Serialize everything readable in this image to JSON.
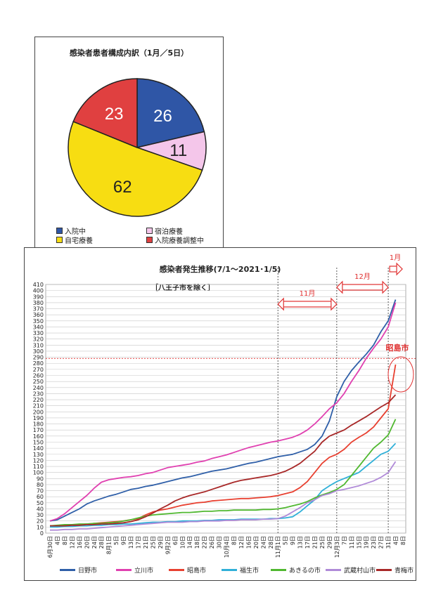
{
  "chart_data": [
    {
      "type": "pie",
      "title": "感染者患者構成内訳（1月／5日）",
      "categories": [
        "入院中",
        "宿泊療養",
        "自宅療養",
        "入院療養調整中"
      ],
      "values": [
        26,
        11,
        62,
        23
      ],
      "colors": [
        "#2f56a6",
        "#f4c6ea",
        "#f7dd12",
        "#e04040"
      ],
      "legend_position": "bottom"
    },
    {
      "type": "line",
      "title": "感染者発生推移(7/1～2021･1/5)",
      "subtitle": "［八王子市を除く］",
      "x": [
        "6月30日",
        "4日",
        "8日",
        "12日",
        "16日",
        "20日",
        "24日",
        "28日",
        "8月1日",
        "5日",
        "9日",
        "13日",
        "17日",
        "21日",
        "25日",
        "29日",
        "9月2日",
        "6日",
        "10日",
        "14日",
        "18日",
        "22日",
        "26日",
        "30日",
        "10月4日",
        "8日",
        "12日",
        "16日",
        "20日",
        "24日",
        "28日",
        "11月1日",
        "5日",
        "9日",
        "13日",
        "17日",
        "21日",
        "25日",
        "29日",
        "12月3日",
        "7日",
        "11日",
        "15日",
        "19日",
        "23日",
        "27日",
        "31日",
        "4日",
        "8日"
      ],
      "ylim": [
        0,
        410
      ],
      "y_ticks": [
        0,
        10,
        20,
        30,
        40,
        50,
        60,
        70,
        80,
        90,
        100,
        110,
        120,
        130,
        140,
        150,
        160,
        170,
        180,
        190,
        200,
        210,
        220,
        230,
        240,
        250,
        260,
        270,
        280,
        290,
        300,
        310,
        320,
        330,
        340,
        350,
        360,
        370,
        380,
        390,
        400,
        410
      ],
      "reference_line": 288,
      "annotations": {
        "nov": "11月",
        "dec": "12月",
        "jan": "1月",
        "highlight": "昭島市"
      },
      "series": [
        {
          "name": "日野市",
          "color": "#2f5fa8",
          "values": [
            20,
            22,
            28,
            34,
            40,
            48,
            53,
            57,
            61,
            64,
            68,
            72,
            74,
            77,
            79,
            82,
            85,
            88,
            91,
            93,
            96,
            99,
            102,
            104,
            106,
            109,
            112,
            115,
            117,
            120,
            123,
            126,
            128,
            130,
            134,
            138,
            146,
            160,
            185,
            225,
            250,
            268,
            282,
            295,
            310,
            332,
            350,
            385,
            null
          ]
        },
        {
          "name": "立川市",
          "color": "#e040b0",
          "values": [
            20,
            24,
            32,
            42,
            52,
            62,
            74,
            84,
            88,
            90,
            92,
            93,
            95,
            98,
            100,
            104,
            108,
            110,
            112,
            114,
            117,
            119,
            123,
            126,
            129,
            133,
            137,
            141,
            144,
            147,
            150,
            152,
            155,
            158,
            163,
            170,
            180,
            192,
            205,
            215,
            230,
            250,
            268,
            288,
            305,
            320,
            340,
            380,
            null
          ]
        },
        {
          "name": "昭島市",
          "color": "#e84030",
          "values": [
            12,
            12,
            13,
            14,
            14,
            15,
            16,
            17,
            18,
            19,
            20,
            22,
            24,
            30,
            35,
            38,
            40,
            43,
            46,
            48,
            50,
            51,
            53,
            54,
            55,
            56,
            57,
            57,
            58,
            59,
            60,
            62,
            65,
            68,
            75,
            85,
            100,
            115,
            125,
            130,
            138,
            150,
            158,
            165,
            175,
            190,
            205,
            278,
            null
          ]
        },
        {
          "name": "福生市",
          "color": "#30b0d8",
          "values": [
            10,
            10,
            11,
            11,
            12,
            12,
            13,
            13,
            14,
            14,
            15,
            15,
            16,
            17,
            18,
            18,
            19,
            19,
            20,
            20,
            20,
            21,
            21,
            22,
            22,
            22,
            23,
            23,
            23,
            23,
            24,
            24,
            25,
            27,
            35,
            45,
            55,
            70,
            78,
            85,
            90,
            95,
            100,
            110,
            120,
            130,
            135,
            148,
            null
          ]
        },
        {
          "name": "あきるの市",
          "color": "#50b830",
          "values": [
            12,
            13,
            14,
            14,
            15,
            15,
            16,
            16,
            17,
            18,
            20,
            22,
            25,
            28,
            30,
            31,
            32,
            33,
            34,
            34,
            35,
            36,
            36,
            37,
            37,
            38,
            38,
            38,
            38,
            39,
            39,
            40,
            42,
            45,
            48,
            52,
            58,
            63,
            67,
            72,
            80,
            95,
            110,
            125,
            140,
            150,
            162,
            188,
            null
          ]
        },
        {
          "name": "武蔵村山市",
          "color": "#b08ad8",
          "values": [
            5,
            5,
            6,
            6,
            7,
            7,
            8,
            9,
            10,
            11,
            12,
            13,
            14,
            15,
            16,
            17,
            18,
            18,
            18,
            19,
            19,
            20,
            20,
            20,
            21,
            21,
            22,
            22,
            22,
            23,
            23,
            24,
            28,
            35,
            42,
            50,
            55,
            62,
            65,
            70,
            72,
            75,
            78,
            82,
            86,
            92,
            100,
            118,
            null
          ]
        },
        {
          "name": "青梅市",
          "color": "#a82828",
          "values": [
            12,
            12,
            12,
            13,
            13,
            14,
            14,
            15,
            15,
            16,
            17,
            19,
            22,
            27,
            33,
            40,
            46,
            53,
            58,
            62,
            65,
            68,
            72,
            76,
            80,
            84,
            87,
            89,
            91,
            93,
            95,
            98,
            102,
            108,
            115,
            125,
            135,
            150,
            160,
            165,
            170,
            178,
            185,
            192,
            200,
            208,
            215,
            228,
            null
          ]
        }
      ]
    }
  ]
}
